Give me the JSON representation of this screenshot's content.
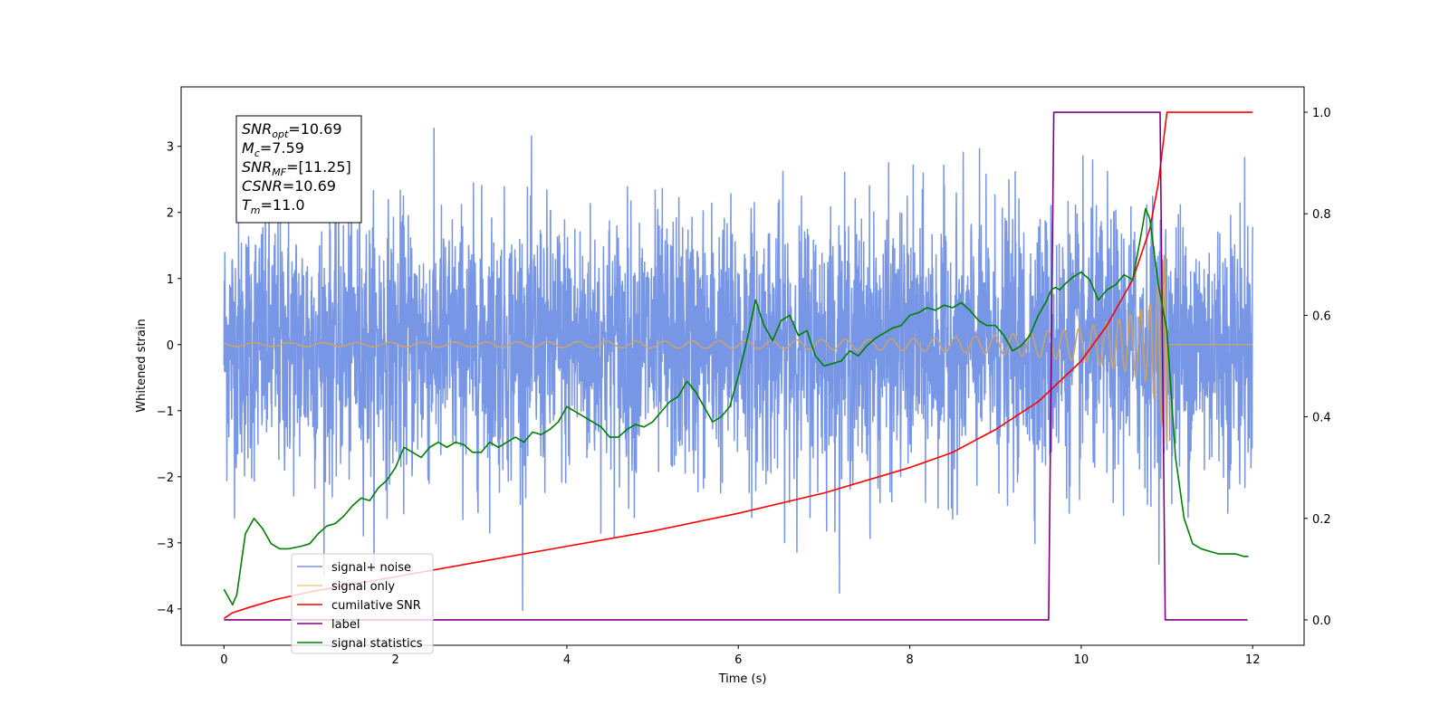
{
  "chart_data": {
    "type": "line",
    "title": "",
    "xlabel": "Time (s)",
    "ylabel": "Whitened strain",
    "xlim": [
      -0.5,
      12.6
    ],
    "ylim": [
      -4.55,
      3.9
    ],
    "y2lim": [
      -0.05,
      1.05
    ],
    "xticks": [
      "0",
      "2",
      "4",
      "6",
      "8",
      "10",
      "12"
    ],
    "yticks": [
      "−4",
      "−3",
      "−2",
      "−1",
      "0",
      "1",
      "2",
      "3"
    ],
    "y2ticks": [
      "0.0",
      "0.2",
      "0.4",
      "0.6",
      "0.8",
      "1.0"
    ],
    "grid": false,
    "legend_position": "lower-left",
    "annotation": {
      "lines": [
        {
          "var": "SNR",
          "sub": "opt",
          "value": "=10.69"
        },
        {
          "var": "M",
          "sub": "c",
          "value": "=7.59"
        },
        {
          "var": "SNR",
          "sub": "MF",
          "value": "=[11.25]"
        },
        {
          "var": "CSNR",
          "sub": "",
          "value": "=10.69"
        },
        {
          "var": "T",
          "sub": "m",
          "value": "=11.0"
        }
      ]
    },
    "series": [
      {
        "name": "signal+ noise",
        "color": "#7896e6",
        "axis": "left",
        "kind": "noise",
        "x_range": [
          0,
          12
        ],
        "amplitude_sd": 1.0
      },
      {
        "name": "signal only",
        "color": "#f5c987",
        "axis": "left",
        "kind": "chirp",
        "x_range": [
          0,
          11.0
        ],
        "envelope": {
          "x": [
            0,
            2,
            4,
            6,
            8,
            9,
            10,
            10.5,
            10.8,
            11.0
          ],
          "y": [
            0.03,
            0.035,
            0.045,
            0.06,
            0.09,
            0.14,
            0.25,
            0.4,
            0.6,
            1.5
          ]
        }
      },
      {
        "name": "cumilative SNR",
        "color": "#ff0000",
        "axis": "right",
        "x": [
          0,
          0.1,
          0.3,
          0.6,
          1,
          2,
          3,
          4,
          5,
          6,
          7,
          8,
          8.5,
          9,
          9.5,
          10,
          10.3,
          10.6,
          10.8,
          10.9,
          11.0,
          11.05,
          12
        ],
        "y": [
          0.003,
          0.014,
          0.025,
          0.04,
          0.055,
          0.085,
          0.115,
          0.145,
          0.175,
          0.21,
          0.25,
          0.3,
          0.33,
          0.375,
          0.43,
          0.51,
          0.58,
          0.67,
          0.77,
          0.86,
          1.0,
          1.0,
          1.0
        ]
      },
      {
        "name": "label",
        "color": "#800080",
        "axis": "right",
        "x": [
          0,
          9.62,
          9.68,
          10.92,
          10.98,
          11.94
        ],
        "y": [
          0,
          0,
          1,
          1,
          0,
          0
        ]
      },
      {
        "name": "signal statistics",
        "color": "#008000",
        "axis": "right",
        "x": [
          0,
          0.1,
          0.15,
          0.25,
          0.35,
          0.45,
          0.55,
          0.65,
          0.75,
          0.9,
          1.0,
          1.1,
          1.2,
          1.3,
          1.4,
          1.5,
          1.6,
          1.7,
          1.8,
          1.9,
          2.0,
          2.1,
          2.2,
          2.3,
          2.4,
          2.5,
          2.6,
          2.7,
          2.8,
          2.9,
          3.0,
          3.1,
          3.2,
          3.3,
          3.4,
          3.5,
          3.6,
          3.7,
          3.8,
          3.9,
          4.0,
          4.1,
          4.2,
          4.3,
          4.4,
          4.5,
          4.6,
          4.7,
          4.8,
          4.9,
          5.0,
          5.1,
          5.2,
          5.3,
          5.4,
          5.5,
          5.6,
          5.7,
          5.8,
          5.9,
          6.0,
          6.1,
          6.2,
          6.3,
          6.4,
          6.5,
          6.6,
          6.7,
          6.8,
          6.9,
          7.0,
          7.1,
          7.2,
          7.3,
          7.4,
          7.5,
          7.6,
          7.7,
          7.8,
          7.9,
          8.0,
          8.1,
          8.2,
          8.3,
          8.4,
          8.5,
          8.6,
          8.7,
          8.8,
          8.9,
          9.0,
          9.1,
          9.2,
          9.3,
          9.4,
          9.5,
          9.6,
          9.65,
          9.7,
          9.75,
          9.8,
          9.9,
          10.0,
          10.1,
          10.2,
          10.3,
          10.4,
          10.5,
          10.6,
          10.7,
          10.75,
          10.8,
          10.9,
          11.0,
          11.1,
          11.2,
          11.3,
          11.4,
          11.5,
          11.6,
          11.7,
          11.8,
          11.9,
          11.95
        ],
        "y": [
          0.06,
          0.03,
          0.05,
          0.17,
          0.2,
          0.18,
          0.15,
          0.14,
          0.14,
          0.145,
          0.15,
          0.17,
          0.185,
          0.19,
          0.205,
          0.225,
          0.24,
          0.235,
          0.26,
          0.275,
          0.3,
          0.34,
          0.33,
          0.32,
          0.34,
          0.35,
          0.34,
          0.35,
          0.345,
          0.33,
          0.33,
          0.35,
          0.34,
          0.35,
          0.36,
          0.35,
          0.37,
          0.365,
          0.375,
          0.39,
          0.42,
          0.41,
          0.4,
          0.39,
          0.38,
          0.36,
          0.36,
          0.375,
          0.385,
          0.38,
          0.39,
          0.41,
          0.43,
          0.44,
          0.47,
          0.45,
          0.42,
          0.39,
          0.4,
          0.42,
          0.48,
          0.55,
          0.63,
          0.58,
          0.55,
          0.59,
          0.6,
          0.56,
          0.57,
          0.52,
          0.5,
          0.505,
          0.51,
          0.53,
          0.52,
          0.54,
          0.555,
          0.565,
          0.575,
          0.58,
          0.6,
          0.605,
          0.615,
          0.61,
          0.62,
          0.615,
          0.625,
          0.61,
          0.59,
          0.58,
          0.58,
          0.56,
          0.53,
          0.54,
          0.56,
          0.6,
          0.63,
          0.65,
          0.655,
          0.65,
          0.66,
          0.675,
          0.685,
          0.67,
          0.63,
          0.65,
          0.66,
          0.68,
          0.67,
          0.76,
          0.81,
          0.79,
          0.66,
          0.57,
          0.32,
          0.2,
          0.15,
          0.14,
          0.135,
          0.13,
          0.13,
          0.13,
          0.125,
          0.125
        ]
      }
    ]
  }
}
